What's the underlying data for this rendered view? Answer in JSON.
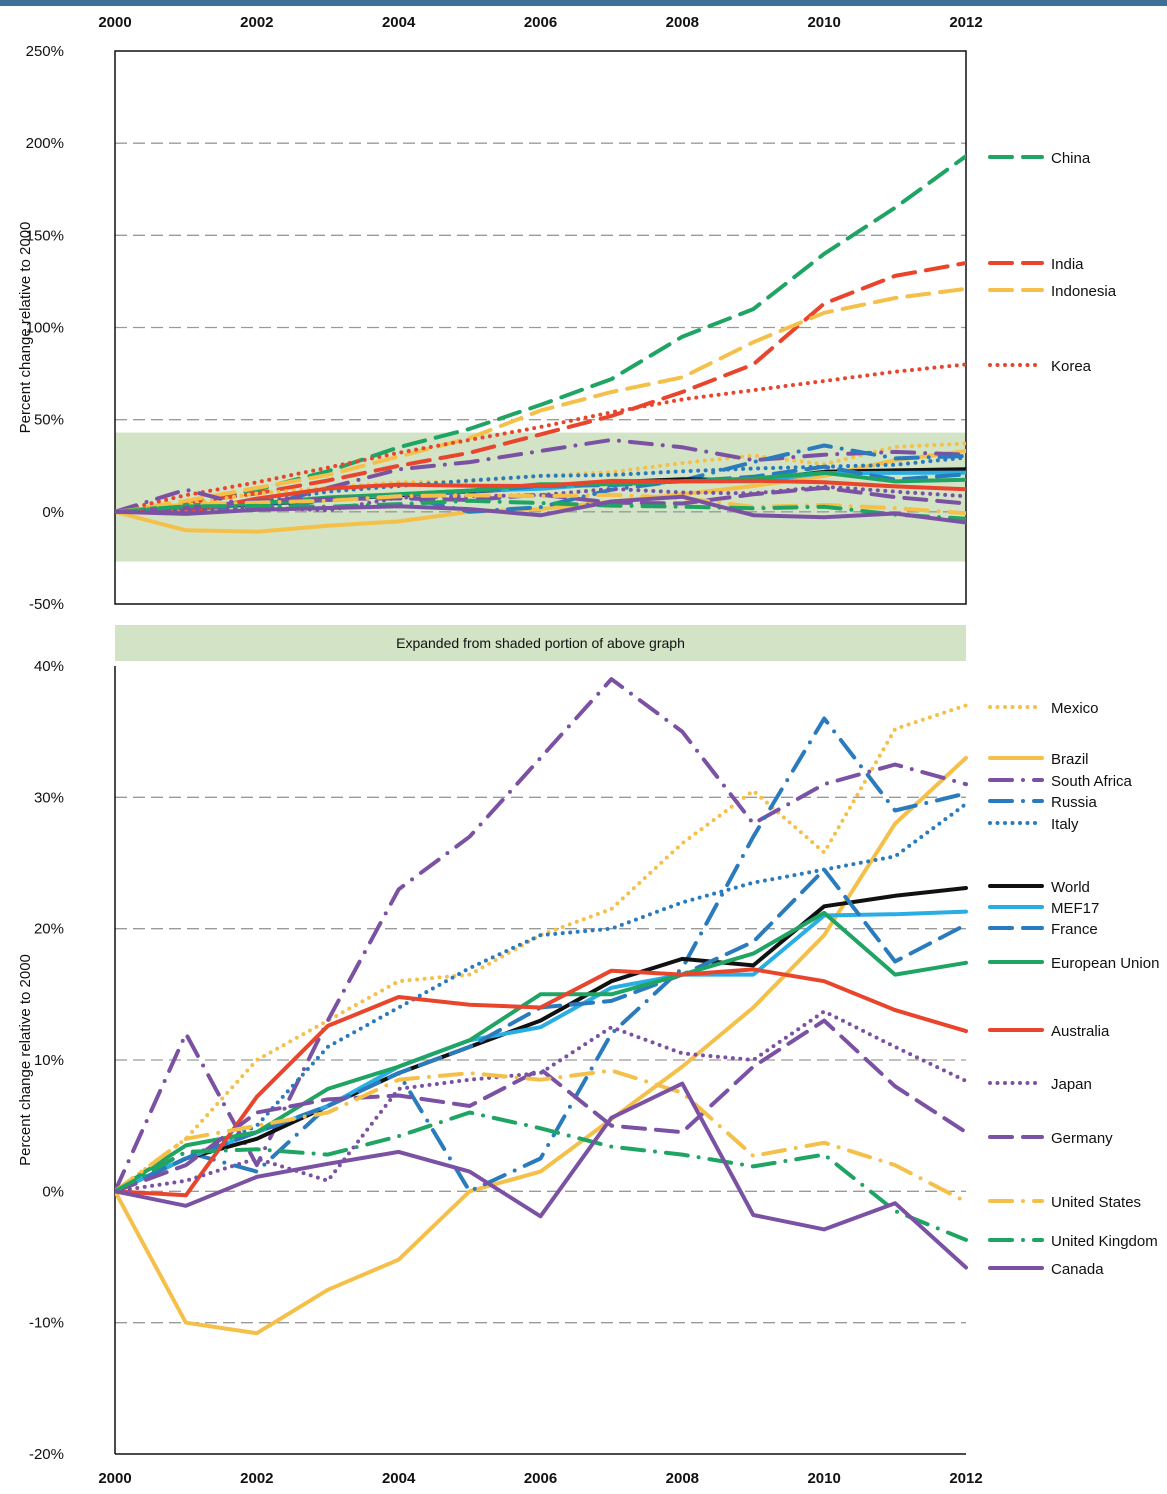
{
  "chart_data": [
    {
      "type": "line",
      "ylabel": "Percent change relative to 2000",
      "x": [
        2000,
        2001,
        2002,
        2003,
        2004,
        2005,
        2006,
        2007,
        2008,
        2009,
        2010,
        2011,
        2012
      ],
      "x_ticks": [
        "2000",
        "2002",
        "2004",
        "2006",
        "2008",
        "2010",
        "2012"
      ],
      "y_ticks": [
        "250%",
        "200%",
        "150%",
        "100%",
        "50%",
        "0%",
        "-50%"
      ],
      "ylim": [
        -50,
        250
      ],
      "grid": "horizontal dashed",
      "legend_placement": "right",
      "shaded_band": [
        -27,
        43
      ],
      "shaded_color": "#d2e3c6",
      "series": [
        {
          "name": "China",
          "color": "#1fa463",
          "dash": "dash",
          "values": [
            0,
            5,
            12,
            22,
            35,
            45,
            58,
            72,
            95,
            110,
            140,
            165,
            193
          ]
        },
        {
          "name": "India",
          "color": "#e8452c",
          "dash": "dash",
          "values": [
            0,
            5,
            10,
            17,
            25,
            32,
            42,
            52,
            65,
            80,
            113,
            128,
            135
          ]
        },
        {
          "name": "Indonesia",
          "color": "#f5c04a",
          "dash": "dash",
          "values": [
            0,
            6,
            13,
            20,
            30,
            40,
            55,
            65,
            73,
            92,
            108,
            116,
            121
          ]
        },
        {
          "name": "Korea",
          "color": "#e8452c",
          "dash": "dot",
          "values": [
            0,
            9,
            16,
            24,
            32,
            39,
            46,
            54,
            61,
            66,
            71,
            76,
            80
          ]
        },
        {
          "name": "Mexico",
          "color": "#f5c04a",
          "dash": "dot",
          "values": [
            0,
            4,
            10,
            13,
            16,
            16.5,
            19.5,
            21.5,
            26.5,
            30.5,
            25.8,
            35.2,
            37
          ]
        },
        {
          "name": "Brazil",
          "color": "#f5c04a",
          "dash": "solid",
          "values": [
            0,
            -10,
            -10.8,
            -7.5,
            -5.2,
            0,
            1.5,
            5.5,
            9.5,
            14,
            19.5,
            28,
            33
          ]
        },
        {
          "name": "South Africa",
          "color": "#7b52a3",
          "dash": "dashdot",
          "values": [
            0,
            12,
            2,
            13,
            23,
            27,
            33,
            39,
            35,
            28,
            31,
            32.5,
            31
          ]
        },
        {
          "name": "Russia",
          "color": "#2a7bbd",
          "dash": "dashdot",
          "values": [
            0,
            3,
            1.5,
            6.5,
            9,
            0,
            2.5,
            12,
            17,
            27,
            36,
            29,
            30.3
          ]
        },
        {
          "name": "Italy",
          "color": "#2a7bbd",
          "dash": "dot",
          "values": [
            0,
            2.5,
            5,
            11,
            14,
            17,
            19.5,
            20,
            22,
            23.5,
            24.5,
            25.5,
            29.5
          ]
        },
        {
          "name": "World",
          "color": "#111111",
          "dash": "solid",
          "values": [
            0,
            2.5,
            4,
            6.5,
            9,
            11,
            13,
            16,
            17.7,
            17.2,
            21.7,
            22.5,
            23.1
          ]
        },
        {
          "name": "MEF17",
          "color": "#29aee3",
          "dash": "solid",
          "values": [
            0,
            2.5,
            4.5,
            6.5,
            9.5,
            11.5,
            12.5,
            15.5,
            16.5,
            16.5,
            21,
            21.1,
            21.3
          ]
        },
        {
          "name": "France",
          "color": "#2a7bbd",
          "dash": "dash",
          "values": [
            0,
            2.5,
            4.5,
            6.5,
            9,
            11,
            14,
            14.5,
            16.5,
            19,
            24.5,
            17.5,
            20.3
          ]
        },
        {
          "name": "European Union",
          "color": "#1fa463",
          "dash": "solid",
          "values": [
            0,
            3.5,
            4.5,
            7.8,
            9.5,
            11.5,
            15,
            15,
            16.5,
            18.1,
            21.2,
            16.5,
            17.4
          ]
        },
        {
          "name": "Australia",
          "color": "#e8452c",
          "dash": "solid",
          "values": [
            0,
            -0.3,
            7.2,
            12.6,
            14.8,
            14.2,
            14,
            16.8,
            16.5,
            16.9,
            16,
            13.8,
            12.2
          ]
        },
        {
          "name": "Japan",
          "color": "#7b52a3",
          "dash": "dot",
          "values": [
            0,
            0.8,
            2.5,
            0.8,
            7.8,
            8.5,
            9,
            12.5,
            10.5,
            10,
            13.7,
            11,
            8.4
          ]
        },
        {
          "name": "Germany",
          "color": "#7b52a3",
          "dash": "dash",
          "values": [
            0,
            2,
            6,
            7,
            7.3,
            6.5,
            9.3,
            5,
            4.5,
            9.5,
            13,
            8,
            4.5
          ]
        },
        {
          "name": "United States",
          "color": "#f5c04a",
          "dash": "dashdot",
          "values": [
            0,
            4,
            5,
            6,
            8.5,
            9,
            8.5,
            9.2,
            7.5,
            2.7,
            3.7,
            2,
            -0.8
          ]
        },
        {
          "name": "United Kingdom",
          "color": "#1fa463",
          "dash": "dashdot",
          "values": [
            0,
            3,
            3.2,
            2.8,
            4.2,
            6,
            4.8,
            3.4,
            2.8,
            1.9,
            2.8,
            -1.5,
            -3.7
          ]
        },
        {
          "name": "Canada",
          "color": "#7b52a3",
          "dash": "solid",
          "values": [
            0,
            -1.1,
            1.1,
            2.1,
            3,
            1.5,
            -1.9,
            5.6,
            8.2,
            -1.8,
            -2.9,
            -0.9,
            -5.8
          ]
        }
      ]
    },
    {
      "type": "line",
      "title": "Expanded from shaded portion of above graph",
      "ylabel": "Percent change relative to 2000",
      "x": [
        2000,
        2001,
        2002,
        2003,
        2004,
        2005,
        2006,
        2007,
        2008,
        2009,
        2010,
        2011,
        2012
      ],
      "x_ticks": [
        "2000",
        "2002",
        "2004",
        "2006",
        "2008",
        "2010",
        "2012"
      ],
      "y_ticks": [
        "40%",
        "30%",
        "20%",
        "10%",
        "0%",
        "-10%",
        "-20%"
      ],
      "ylim": [
        -20,
        40
      ],
      "grid": "horizontal dashed",
      "legend_placement": "right",
      "series_ref": "same as first chart (series with values inside the shaded band)",
      "legend": [
        "Mexico",
        "Brazil",
        "South Africa",
        "Russia",
        "Italy",
        "World",
        "MEF17",
        "France",
        "European Union",
        "Australia",
        "Japan",
        "Germany",
        "United States",
        "United Kingdom",
        "Canada"
      ]
    }
  ]
}
